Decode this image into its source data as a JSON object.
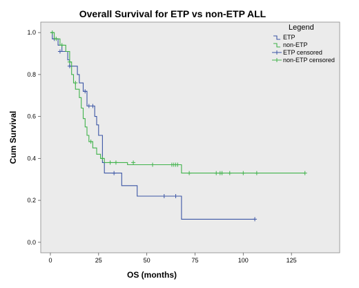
{
  "chart_data": {
    "type": "line",
    "title": "Overall Survival for ETP vs non-ETP ALL",
    "xlabel": "OS (months)",
    "ylabel": "Cum Survival",
    "xlim": [
      -5,
      150
    ],
    "ylim": [
      -0.05,
      1.05
    ],
    "x_ticks": [
      0,
      25,
      50,
      75,
      100,
      125
    ],
    "y_ticks": [
      "0.0",
      "0.2",
      "0.4",
      "0.6",
      "0.8",
      "1.0"
    ],
    "grid": false,
    "legend": {
      "title": "Legend",
      "placement": "right",
      "entries": [
        "ETP",
        "non-ETP",
        "ETP censored",
        "non-ETP censored"
      ]
    },
    "series": [
      {
        "name": "ETP",
        "color": "#3b55a5",
        "steps": [
          [
            0,
            1.0
          ],
          [
            1,
            0.97
          ],
          [
            4,
            0.94
          ],
          [
            6,
            0.91
          ],
          [
            9,
            0.87
          ],
          [
            10,
            0.84
          ],
          [
            14,
            0.8
          ],
          [
            15,
            0.76
          ],
          [
            17,
            0.72
          ],
          [
            19,
            0.65
          ],
          [
            23,
            0.6
          ],
          [
            24,
            0.56
          ],
          [
            25,
            0.51
          ],
          [
            27,
            0.38
          ],
          [
            28,
            0.33
          ],
          [
            34,
            0.33
          ],
          [
            37,
            0.27
          ],
          [
            45,
            0.22
          ],
          [
            67,
            0.22
          ],
          [
            68,
            0.11
          ],
          [
            106,
            0.11
          ]
        ],
        "censored": [
          [
            2,
            0.97
          ],
          [
            5,
            0.91
          ],
          [
            10,
            0.84
          ],
          [
            18,
            0.72
          ],
          [
            20,
            0.65
          ],
          [
            22,
            0.65
          ],
          [
            33,
            0.33
          ],
          [
            59,
            0.22
          ],
          [
            65,
            0.22
          ],
          [
            106,
            0.11
          ]
        ]
      },
      {
        "name": "non-ETP",
        "color": "#3fb24a",
        "steps": [
          [
            0,
            1.0
          ],
          [
            2,
            0.97
          ],
          [
            5,
            0.94
          ],
          [
            8,
            0.91
          ],
          [
            10,
            0.86
          ],
          [
            11,
            0.8
          ],
          [
            12,
            0.76
          ],
          [
            13,
            0.73
          ],
          [
            15,
            0.69
          ],
          [
            16,
            0.64
          ],
          [
            17,
            0.59
          ],
          [
            18,
            0.55
          ],
          [
            19,
            0.51
          ],
          [
            20,
            0.48
          ],
          [
            22,
            0.45
          ],
          [
            24,
            0.42
          ],
          [
            26,
            0.4
          ],
          [
            28,
            0.38
          ],
          [
            38,
            0.38
          ],
          [
            40,
            0.37
          ],
          [
            67,
            0.37
          ],
          [
            68,
            0.33
          ],
          [
            132,
            0.33
          ]
        ],
        "censored": [
          [
            1,
            1.0
          ],
          [
            3,
            0.97
          ],
          [
            6,
            0.94
          ],
          [
            10,
            0.86
          ],
          [
            13,
            0.76
          ],
          [
            21,
            0.48
          ],
          [
            27,
            0.4
          ],
          [
            31,
            0.38
          ],
          [
            34,
            0.38
          ],
          [
            43,
            0.38
          ],
          [
            53,
            0.37
          ],
          [
            63,
            0.37
          ],
          [
            64,
            0.37
          ],
          [
            65,
            0.37
          ],
          [
            66,
            0.37
          ],
          [
            72,
            0.33
          ],
          [
            86,
            0.33
          ],
          [
            88,
            0.33
          ],
          [
            89,
            0.33
          ],
          [
            93,
            0.33
          ],
          [
            100,
            0.33
          ],
          [
            107,
            0.33
          ],
          [
            132,
            0.33
          ]
        ]
      }
    ]
  }
}
